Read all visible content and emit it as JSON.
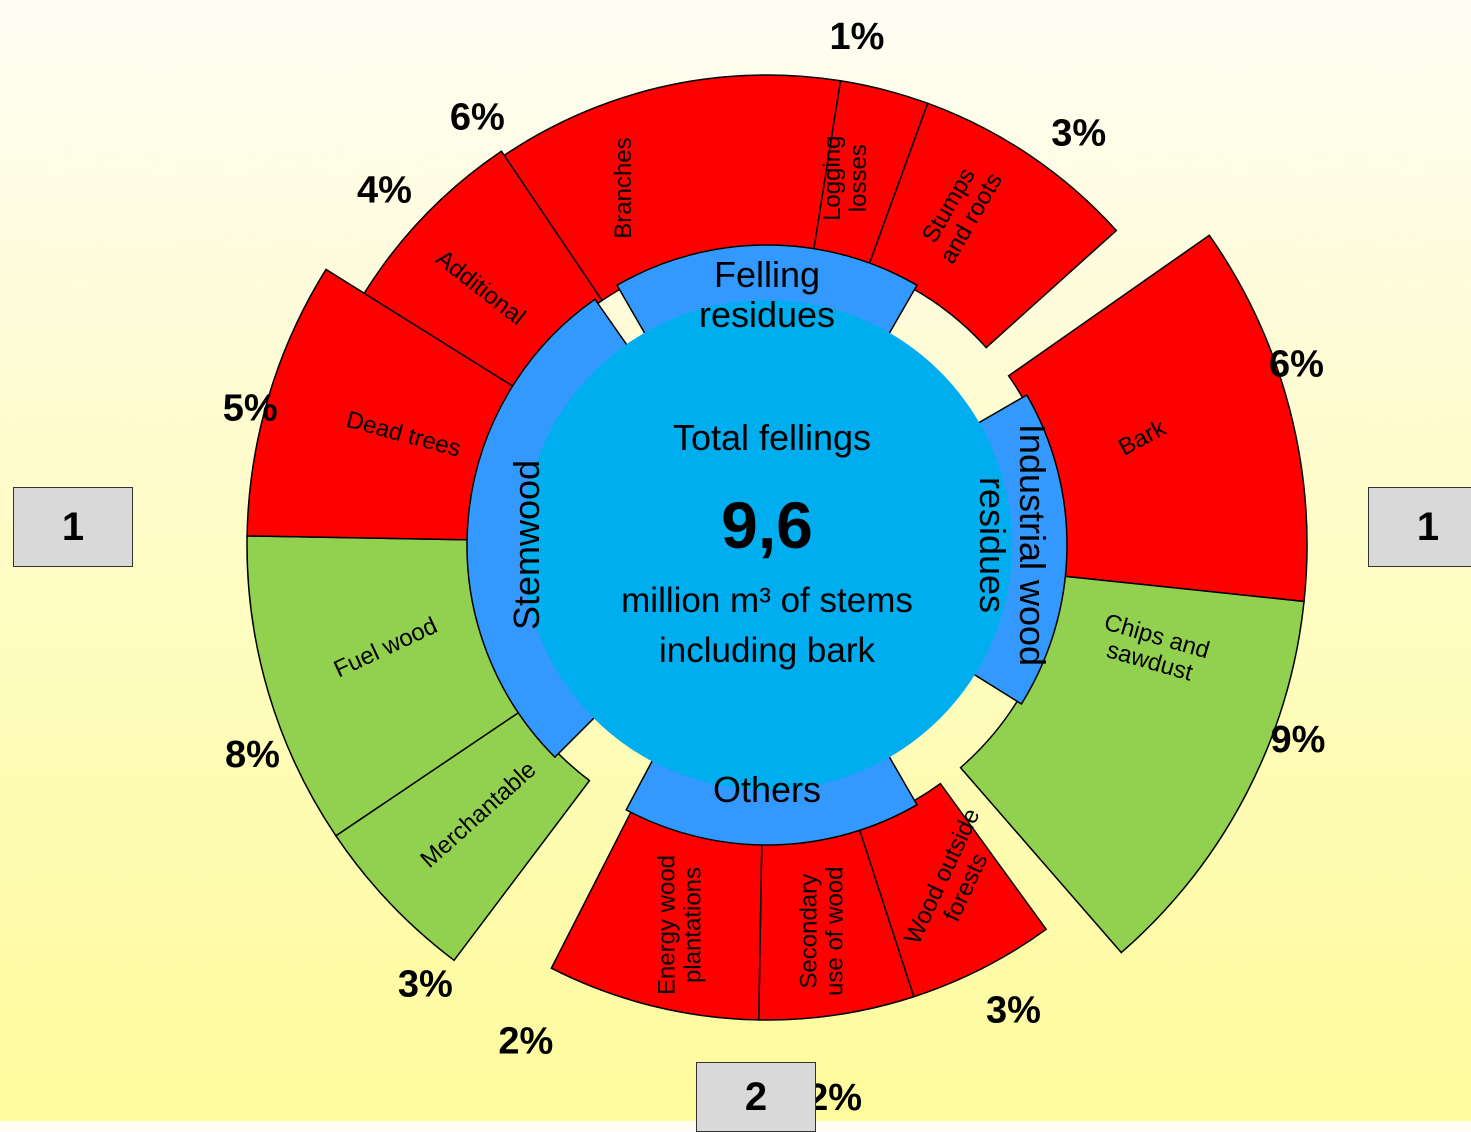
{
  "center": {
    "title": "Total fellings",
    "value": "9,6",
    "unit_line1": "million m³ of stems",
    "unit_line2": "including bark"
  },
  "colors": {
    "center": "#00aeef",
    "ring": "#3399ff",
    "residue": "#ff0000",
    "wood": "#92d050"
  },
  "groups": [
    {
      "id": "felling",
      "lines": [
        "Felling",
        "residues"
      ]
    },
    {
      "id": "industrial",
      "lines": [
        "Industrial wood",
        "residues"
      ]
    },
    {
      "id": "others",
      "lines": [
        "Others"
      ]
    },
    {
      "id": "stemwood",
      "lines": [
        "Stemwood"
      ]
    }
  ],
  "segments": [
    {
      "group": "felling",
      "lines": [
        "Branches"
      ],
      "percent_label": "6%",
      "color": "residue"
    },
    {
      "group": "felling",
      "lines": [
        "Logging",
        "losses"
      ],
      "percent_label": "1%",
      "color": "residue"
    },
    {
      "group": "felling",
      "lines": [
        "Stumps",
        "and roots"
      ],
      "percent_label": "3%",
      "color": "residue"
    },
    {
      "group": "industrial",
      "lines": [
        "Bark"
      ],
      "percent_label": "6%",
      "color": "residue"
    },
    {
      "group": "industrial",
      "lines": [
        "Chips and",
        "sawdust"
      ],
      "percent_label": "9%",
      "color": "wood"
    },
    {
      "group": "others",
      "lines": [
        "Wood outside",
        "forests"
      ],
      "percent_label": "3%",
      "color": "residue"
    },
    {
      "group": "others",
      "lines": [
        "Secondary",
        "use of wood"
      ],
      "percent_label": "2%",
      "color": "residue"
    },
    {
      "group": "others",
      "lines": [
        "Energy wood",
        "plantations"
      ],
      "percent_label": "2%",
      "color": "residue"
    },
    {
      "group": "stemwood",
      "lines": [
        "Merchantable"
      ],
      "percent_label": "3%",
      "color": "wood"
    },
    {
      "group": "stemwood",
      "lines": [
        "Fuel wood"
      ],
      "percent_label": "8%",
      "color": "wood"
    },
    {
      "group": "stemwood",
      "lines": [
        "Dead trees"
      ],
      "percent_label": "5%",
      "color": "residue"
    },
    {
      "group": "stemwood",
      "lines": [
        "Additional"
      ],
      "percent_label": "4%",
      "color": "residue"
    }
  ],
  "boxes": {
    "left": "1",
    "right": "1",
    "bottom": "2"
  }
}
